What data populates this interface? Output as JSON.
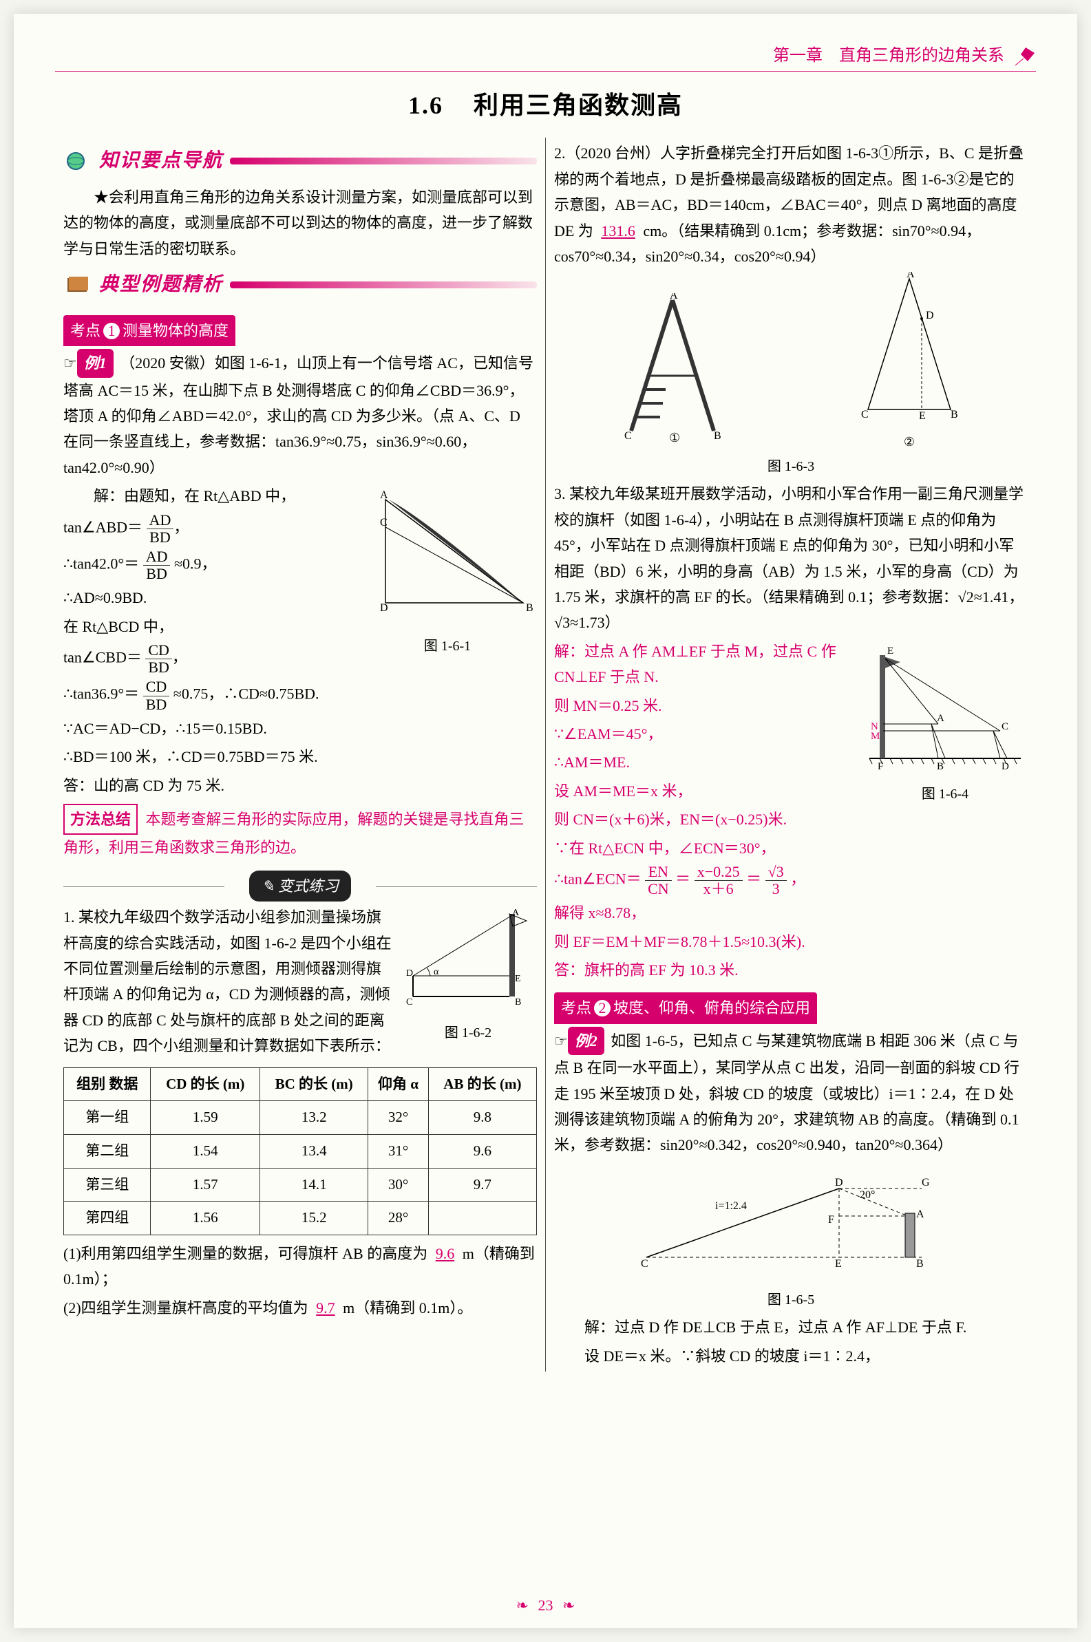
{
  "chapter": "第一章　直角三角形的边角关系",
  "section_no": "1.6",
  "section_title": "利用三角函数测高",
  "heading1": "知识要点导航",
  "intro": "★会利用直角三角形的边角关系设计测量方案，如测量底部可以到达的物体的高度，或测量底部不可以到达的物体的高度，进一步了解数学与日常生活的密切联系。",
  "heading2": "典型例题精析",
  "kaodian1_label": "考点",
  "kaodian1_num": "1",
  "kaodian1_title": "测量物体的高度",
  "ex1_label": "例1",
  "ex1_text": "（2020 安徽）如图 1-6-1，山顶上有一个信号塔 AC，已知信号塔高 AC＝15 米，在山脚下点 B 处测得塔底 C 的仰角∠CBD＝36.9°，塔顶 A 的仰角∠ABD＝42.0°，求山的高 CD 为多少米。（点 A、C、D 在同一条竖直线上，参考数据：tan36.9°≈0.75，sin36.9°≈0.60，tan42.0°≈0.90）",
  "sol1_lead": "解：由题知，在 Rt△ABD 中，",
  "sol1_l1a": "tan∠ABD＝",
  "sol1_l1_num": "AD",
  "sol1_l1_den": "BD",
  "sol1_l2a": "∴tan42.0°＝",
  "sol1_l2b": "≈0.9，",
  "sol1_l3": "∴AD≈0.9BD.",
  "sol1_l4": "在 Rt△BCD 中，",
  "sol1_l5a": "tan∠CBD＝",
  "sol1_l5_num": "CD",
  "sol1_l5_den": "BD",
  "sol1_l6a": "∴tan36.9°＝",
  "sol1_l6b": "≈0.75，∴CD≈0.75BD.",
  "sol1_l7": "∵AC＝AD−CD，∴15＝0.15BD.",
  "sol1_l8": "∴BD＝100 米，∴CD＝0.75BD＝75 米.",
  "sol1_l9": "答：山的高 CD 为 75 米.",
  "fig1_caption": "图 1-6-1",
  "method_label": "方法总结",
  "method_text": "本题考查解三角形的实际应用，解题的关键是寻找直角三角形，利用三角函数求三角形的边。",
  "variant_label": "变式练习",
  "var1_text": "1. 某校九年级四个数学活动小组参加测量操场旗杆高度的综合实践活动，如图 1-6-2 是四个小组在不同位置测量后绘制的示意图，用测倾器测得旗杆顶端 A 的仰角记为 α，CD 为测倾器的高，测倾器 CD 的底部 C 处与旗杆的底部 B 处之间的距离记为 CB，四个小组测量和计算数据如下表所示：",
  "fig2_caption": "图 1-6-2",
  "table": {
    "headers": [
      "组别\n数据",
      "CD 的长\n(m)",
      "BC 的长\n(m)",
      "仰角 α",
      "AB 的长\n(m)"
    ],
    "rows": [
      [
        "第一组",
        "1.59",
        "13.2",
        "32°",
        "9.8"
      ],
      [
        "第二组",
        "1.54",
        "13.4",
        "31°",
        "9.6"
      ],
      [
        "第三组",
        "1.57",
        "14.1",
        "30°",
        "9.7"
      ],
      [
        "第四组",
        "1.56",
        "15.2",
        "28°",
        ""
      ]
    ]
  },
  "var1_q1a": "(1)利用第四组学生测量的数据，可得旗杆 AB 的高度为",
  "var1_q1_ans": "9.6",
  "var1_q1b": "m（精确到 0.1m）；",
  "var1_q2a": "(2)四组学生测量旗杆高度的平均值为",
  "var1_q2_ans": "9.7",
  "var1_q2b": "m（精确到 0.1m）。",
  "p2_text_a": "2.（2020 台州）人字折叠梯完全打开后如图 1-6-3①所示，B、C 是折叠梯的两个着地点，D 是折叠梯最高级踏板的固定点。图 1-6-3②是它的示意图，AB＝AC，BD＝140cm，∠BAC＝40°，则点 D 离地面的高度 DE 为",
  "p2_ans": "131.6",
  "p2_text_b": "cm。（结果精确到 0.1cm；参考数据：sin70°≈0.94，cos70°≈0.34，sin20°≈0.34，cos20°≈0.94）",
  "fig3_caption": "图 1-6-3",
  "p3_text": "3. 某校九年级某班开展数学活动，小明和小军合作用一副三角尺测量学校的旗杆（如图 1-6-4），小明站在 B 点测得旗杆顶端 E 点的仰角为 45°，小军站在 D 点测得旗杆顶端 E 点的仰角为 30°，已知小明和小军相距（BD）6 米，小明的身高（AB）为 1.5 米，小军的身高（CD）为 1.75 米，求旗杆的高 EF 的长。（结果精确到 0.1；参考数据：√2≈1.41，√3≈1.73）",
  "p3_sol_l1": "解：过点 A 作 AM⊥EF 于点 M，过点 C 作 CN⊥EF 于点 N.",
  "p3_sol_l2": "则 MN＝0.25 米.",
  "p3_sol_l3": "∵∠EAM＝45°，",
  "p3_sol_l4": "∴AM＝ME.",
  "p3_sol_l5": "设 AM＝ME＝x 米，",
  "p3_sol_l6": "则 CN＝(x＋6)米，EN＝(x−0.25)米.",
  "p3_sol_l7": "∵在 Rt△ECN 中，∠ECN＝30°，",
  "p3_sol_l8a": "∴tan∠ECN＝",
  "p3_sol_l8_n1": "EN",
  "p3_sol_l8_d1": "CN",
  "p3_sol_l8_eq": "＝",
  "p3_sol_l8_n2": "x−0.25",
  "p3_sol_l8_d2": "x＋6",
  "p3_sol_l8_eq2": "＝",
  "p3_sol_l8_n3": "√3",
  "p3_sol_l8_d3": "3",
  "p3_sol_l8_end": "，",
  "p3_sol_l9": "解得 x≈8.78，",
  "p3_sol_l10": "则 EF＝EM＋MF＝8.78＋1.5≈10.3(米).",
  "p3_sol_l11": "答：旗杆的高 EF 为 10.3 米.",
  "fig4_caption": "图 1-6-4",
  "kaodian2_label": "考点",
  "kaodian2_num": "2",
  "kaodian2_title": "坡度、仰角、俯角的综合应用",
  "ex2_label": "例2",
  "ex2_text": "如图 1-6-5，已知点 C 与某建筑物底端 B 相距 306 米（点 C 与点 B 在同一水平面上），某同学从点 C 出发，沿同一剖面的斜坡 CD 行走 195 米至坡顶 D 处，斜坡 CD 的坡度（或坡比）i＝1∶2.4，在 D 处测得该建筑物顶端 A 的俯角为 20°，求建筑物 AB 的高度。（精确到 0.1 米，参考数据：sin20°≈0.342，cos20°≈0.940，tan20°≈0.364）",
  "fig5_label_i": "i=1:2.4",
  "fig5_label_20": "20°",
  "fig5_caption": "图 1-6-5",
  "sol2_l1": "解：过点 D 作 DE⊥CB 于点 E，过点 A 作 AF⊥DE 于点 F.",
  "sol2_l2": "设 DE＝x 米。∵斜坡 CD 的坡度 i＝1∶2.4，",
  "page_number": "23"
}
